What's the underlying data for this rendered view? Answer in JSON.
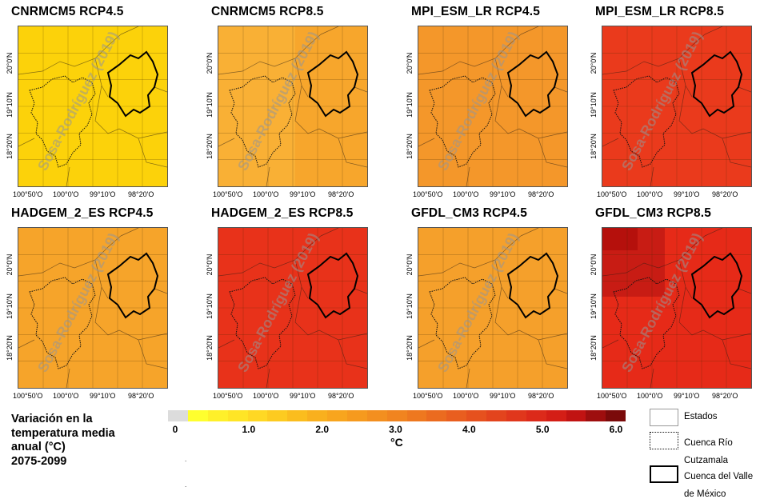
{
  "map_data": {
    "lat_labels": [
      "20°0'N",
      "19°10'N",
      "18°20'N"
    ],
    "lon_labels": [
      "100°50'O",
      "100°0'O",
      "99°10'O",
      "98°20'O"
    ],
    "watermark": "Sosa-Rodríguez (2019)",
    "panels": [
      {
        "title": "CNRMCM5 RCP4.5",
        "value": 1.2,
        "color": "#fcd20a"
      },
      {
        "title": "CNRMCM5 RCP8.5",
        "value": 3.2,
        "color": "#f7a62c",
        "variation": "#f59a28"
      },
      {
        "title": "MPI_ESM_LR RCP4.5",
        "value": 3.5,
        "color": "#f4972a"
      },
      {
        "title": "MPI_ESM_LR RCP8.5",
        "value": 5.3,
        "color": "#ea3a1c"
      },
      {
        "title": "HADGEM_2_ES RCP4.5",
        "value": 2.8,
        "color": "#f6a42a"
      },
      {
        "title": "HADGEM_2_ES RCP8.5",
        "value": 5.4,
        "color": "#e8321a"
      },
      {
        "title": "GFDL_CM3 RCP4.5",
        "value": 3.1,
        "color": "#f5a02b"
      },
      {
        "title": "GFDL_CM3 RCP8.5",
        "value": 5.6,
        "color": "#e62a18",
        "variation": "#b5100c"
      }
    ]
  },
  "legend": {
    "title_lines": [
      "Variación en la",
      "temperatura media",
      "anual (°C)",
      "2075-2099"
    ],
    "ticks": [
      "0",
      "1.0",
      "2.0",
      "3.0",
      "4.0",
      "5.0",
      "6.0"
    ],
    "unit": "°C",
    "colors": [
      "#dcdcdc",
      "#ffff2e",
      "#fff02a",
      "#ffe526",
      "#ffd824",
      "#fdcb20",
      "#fbbd1e",
      "#f9b01e",
      "#f8a51e",
      "#f69a1e",
      "#f38f1f",
      "#f1841f",
      "#ee781f",
      "#eb6b1f",
      "#e95e1f",
      "#e6511e",
      "#e3441d",
      "#e0371c",
      "#dc2a1a",
      "#d41e16",
      "#c11312",
      "#9e0e0e",
      "#7b0a0a"
    ],
    "keys": [
      {
        "label": "Estados",
        "style": "states"
      },
      {
        "label": "Cuenca Río\nCutzamala",
        "style": "cutzamala"
      },
      {
        "label": "Cuenca del Valle\nde México",
        "style": "valle"
      }
    ]
  }
}
